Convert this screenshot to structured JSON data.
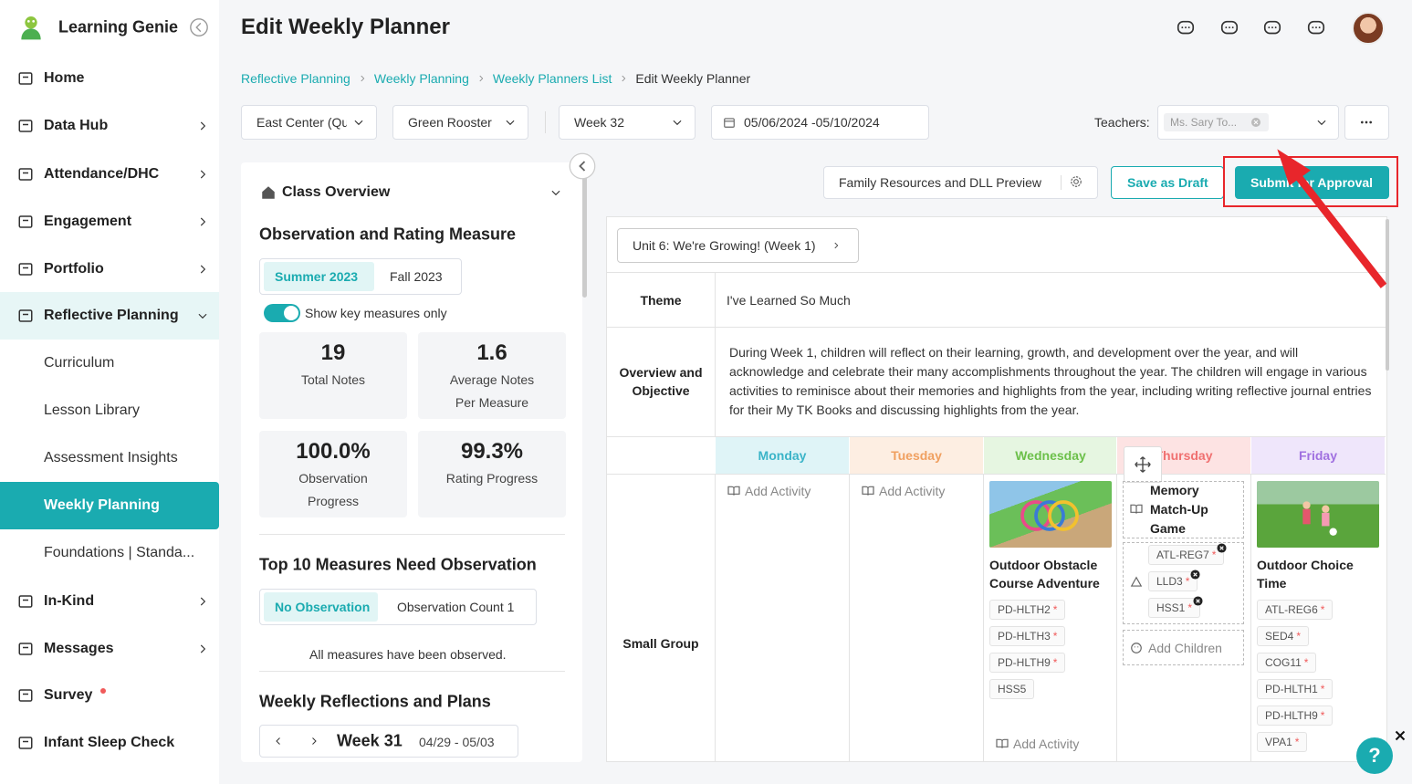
{
  "sidebar": {
    "brand": "Learning Genie",
    "nav": [
      "Home",
      "Data Hub",
      "Attendance/DHC",
      "Engagement",
      "Portfolio",
      "Reflective Planning",
      "Curriculum",
      "Lesson Library",
      "Assessment Insights",
      "Weekly Planning",
      "Foundations | Standa...",
      "In-Kind",
      "Messages",
      "Survey",
      "Infant Sleep Check"
    ]
  },
  "header": {
    "title": "Edit Weekly Planner",
    "breadcrumb": [
      "Reflective Planning",
      "Weekly Planning",
      "Weekly Planners List",
      "Edit Weekly Planner"
    ]
  },
  "filters": {
    "center": "East Center (Qu",
    "group": "Green Rooster",
    "week": "Week 32",
    "dates": "05/06/2024 -05/10/2024",
    "teachers_label": "Teachers:",
    "teacher": "Ms. Sary To..."
  },
  "overview": {
    "title": "Class Overview",
    "section": "Observation and Rating Measure",
    "tabs": [
      "Summer 2023",
      "Fall 2023"
    ],
    "toggle": "Show key measures only",
    "stats": [
      {
        "value": "19",
        "label": "Total Notes"
      },
      {
        "value": "1.6",
        "label": "Average Notes Per Measure"
      },
      {
        "value": "100.0%",
        "label": "Observation Progress"
      },
      {
        "value": "99.3%",
        "label": "Rating Progress"
      }
    ],
    "top_title": "Top 10 Measures Need Observation",
    "top_tabs": [
      "No Observation",
      "Observation Count 1"
    ],
    "top_note": "All measures have been observed.",
    "reflections_title": "Weekly Reflections and Plans",
    "reflections_week": "Week 31",
    "reflections_range": "04/29 - 05/03"
  },
  "actions": {
    "preview": "Family Resources and DLL Preview",
    "draft": "Save as Draft",
    "submit": "Submit for Approval"
  },
  "planner": {
    "unit": "Unit 6: We're Growing! (Week 1)",
    "theme_label": "Theme",
    "theme": "I've Learned So Much",
    "overview_label": "Overview and Objective",
    "overview": "During Week 1, children will reflect on their learning, growth, and development over the year, and will acknowledge and celebrate their many accomplishments throughout the year. The children will engage in various activities to reminisce about their memories and highlights from the year, including writing reflective journal entries for their My TK Books and discussing highlights from the year.",
    "days": [
      "Monday",
      "Tuesday",
      "Wednesday",
      "Thursday",
      "Friday"
    ],
    "row_label": "Small Group",
    "monday": {
      "add": "Add Activity"
    },
    "tuesday": {
      "add": "Add Activity"
    },
    "wednesday": {
      "title": "Outdoor Obstacle Course Adventure",
      "tags": [
        {
          "code": "PD-HLTH2",
          "mark": "*"
        },
        {
          "code": "PD-HLTH3",
          "mark": "*"
        },
        {
          "code": "PD-HLTH9",
          "mark": "*"
        },
        {
          "code": "HSS5"
        }
      ],
      "add": "Add Activity"
    },
    "thursday": {
      "title": "Memory Match-Up Game",
      "tags": [
        {
          "code": "ATL-REG7",
          "mark": "*"
        },
        {
          "code": "LLD3",
          "mark": "*"
        },
        {
          "code": "HSS1",
          "mark": "*"
        }
      ],
      "add_children": "Add Children"
    },
    "friday": {
      "title": "Outdoor Choice Time",
      "tags": [
        {
          "code": "ATL-REG6",
          "mark": "*"
        },
        {
          "code": "SED4",
          "mark": "*"
        },
        {
          "code": "COG11",
          "mark": "*"
        },
        {
          "code": "PD-HLTH1",
          "mark": "*"
        },
        {
          "code": "PD-HLTH9",
          "mark": "*"
        },
        {
          "code": "VPA1",
          "mark": "*"
        }
      ]
    }
  },
  "help": "?"
}
